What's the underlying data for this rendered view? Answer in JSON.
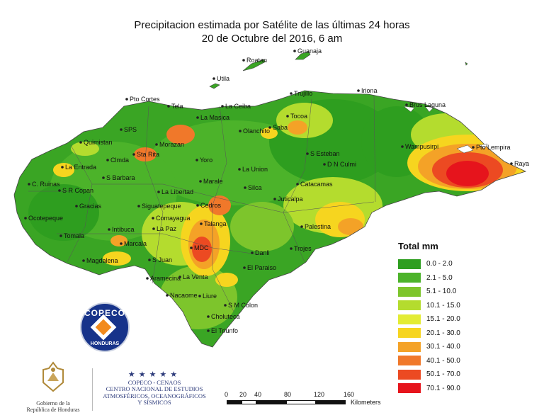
{
  "title": {
    "line1": "Precipitacion estimada por Satélite de las últimas 24 horas",
    "line2": "20 de Octubre del 2016, 6 am"
  },
  "legend": {
    "title": "Total mm",
    "items": [
      {
        "label": "0.0 - 2.0",
        "color": "#2e9e1f"
      },
      {
        "label": "2.1 - 5.0",
        "color": "#4cb32a"
      },
      {
        "label": "5.1 - 10.0",
        "color": "#7dc52c"
      },
      {
        "label": "10.1 - 15.0",
        "color": "#b4dc2e"
      },
      {
        "label": "15.1 - 20.0",
        "color": "#e3ec34"
      },
      {
        "label": "20.1 - 30.0",
        "color": "#f6d51f"
      },
      {
        "label": "30.1 - 40.0",
        "color": "#f4a227"
      },
      {
        "label": "40.1 - 50.0",
        "color": "#f0782a"
      },
      {
        "label": "50.1 - 70.0",
        "color": "#ec4a22"
      },
      {
        "label": "70.1 - 90.0",
        "color": "#e6141c"
      }
    ]
  },
  "towns": [
    "Guanaja",
    "Roatan",
    "Utila",
    "Trujillo",
    "Iriona",
    "Pto Cortes",
    "Tela",
    "La Ceiba",
    "Tocoa",
    "Brus Laguna",
    "La Masica",
    "Olanchito",
    "Saba",
    "SPS",
    "Quimistan",
    "Morazan",
    "Sta Rita",
    "Wampusirpi",
    "Pto Lempira",
    "Raya",
    "S Esteban",
    "D N Culmi",
    "Clmda",
    "La Entrada",
    "Yoro",
    "La Union",
    "S Barbara",
    "C. Ruinas",
    "S R Copan",
    "La Libertad",
    "Marale",
    "Silca",
    "Catacamas",
    "Gracias",
    "Siguatepeque",
    "Cedros",
    "Juticalpa",
    "Ocotepeque",
    "Comayagua",
    "Tomala",
    "Intibuca",
    "La Paz",
    "Talanga",
    "Palestina",
    "Marcala",
    "MDC",
    "Danli",
    "Trojes",
    "Magdalena",
    "S Juan",
    "El Paraiso",
    "Aramecina",
    "La Venta",
    "Nacaome",
    "Liure",
    "S M Colon",
    "Choluteca",
    "El Triunfo"
  ],
  "logo": {
    "top": "COPECO",
    "bottom": "HONDURAS"
  },
  "government": {
    "line1": "Gobierno de la",
    "line2": "República de Honduras"
  },
  "institution": {
    "stars": "★★★★★",
    "line1": "COPECO - CENAOS",
    "line2": "CENTRO NACIONAL DE ESTUDIOS",
    "line3": "ATMOSFÉRICOS, OCEANOGRÁFICOS",
    "line4": "Y SÍSMICOS"
  },
  "scalebar": {
    "ticks": [
      "0",
      "20",
      "40",
      "80",
      "120",
      "160"
    ],
    "unit": "Kilometers"
  }
}
